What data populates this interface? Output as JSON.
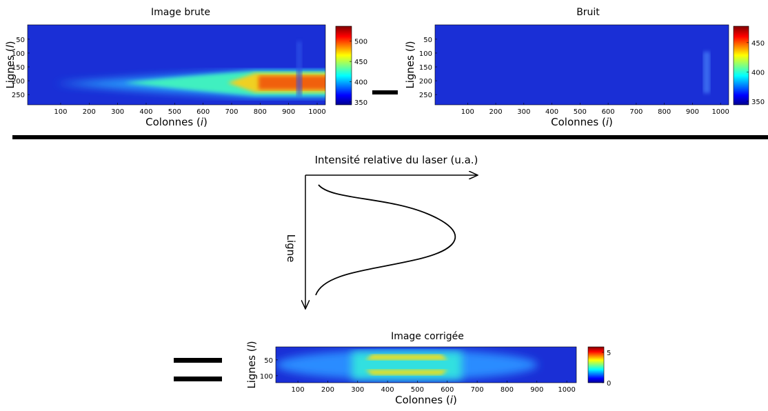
{
  "panels": [
    {
      "title": "Image brute",
      "xlabel": [
        "Colonnes (",
        "i",
        ")"
      ],
      "ylabel": [
        "Lignes (",
        "l",
        ")"
      ],
      "xticks": [
        100,
        200,
        300,
        400,
        500,
        600,
        700,
        800,
        900,
        1000
      ],
      "xlim": [
        -16,
        1029
      ],
      "yticks": [
        50,
        100,
        150,
        200,
        250
      ],
      "ylim": [
        -2,
        287
      ],
      "cticks": [
        350,
        400,
        450,
        500
      ],
      "clim": [
        343,
        537
      ]
    },
    {
      "title": "Bruit",
      "xlabel": [
        "Colonnes (",
        "i",
        ")"
      ],
      "ylabel": [
        "Lignes (",
        "l",
        ")"
      ],
      "xticks": [
        100,
        200,
        300,
        400,
        500,
        600,
        700,
        800,
        900,
        1000
      ],
      "xlim": [
        -16,
        1029
      ],
      "yticks": [
        50,
        100,
        150,
        200,
        250
      ],
      "ylim": [
        -2,
        287
      ],
      "cticks": [
        350,
        400,
        450
      ],
      "clim": [
        344,
        478
      ]
    },
    {
      "title": "Image corrigée",
      "xlabel": [
        "Colonnes (",
        "i",
        ")"
      ],
      "ylabel": [
        "Lignes (",
        "l",
        ")"
      ],
      "xticks": [
        100,
        200,
        300,
        400,
        500,
        600,
        700,
        800,
        900,
        1000
      ],
      "xlim": [
        26,
        1032
      ],
      "yticks": [
        50,
        100
      ],
      "ylim": [
        9,
        122
      ],
      "cticks": [
        0,
        5
      ],
      "clim": [
        0,
        5.9
      ]
    }
  ],
  "diagram": {
    "x_axis_label": "Intensité relative du laser (u.a.)",
    "y_axis_label": "Ligne"
  }
}
